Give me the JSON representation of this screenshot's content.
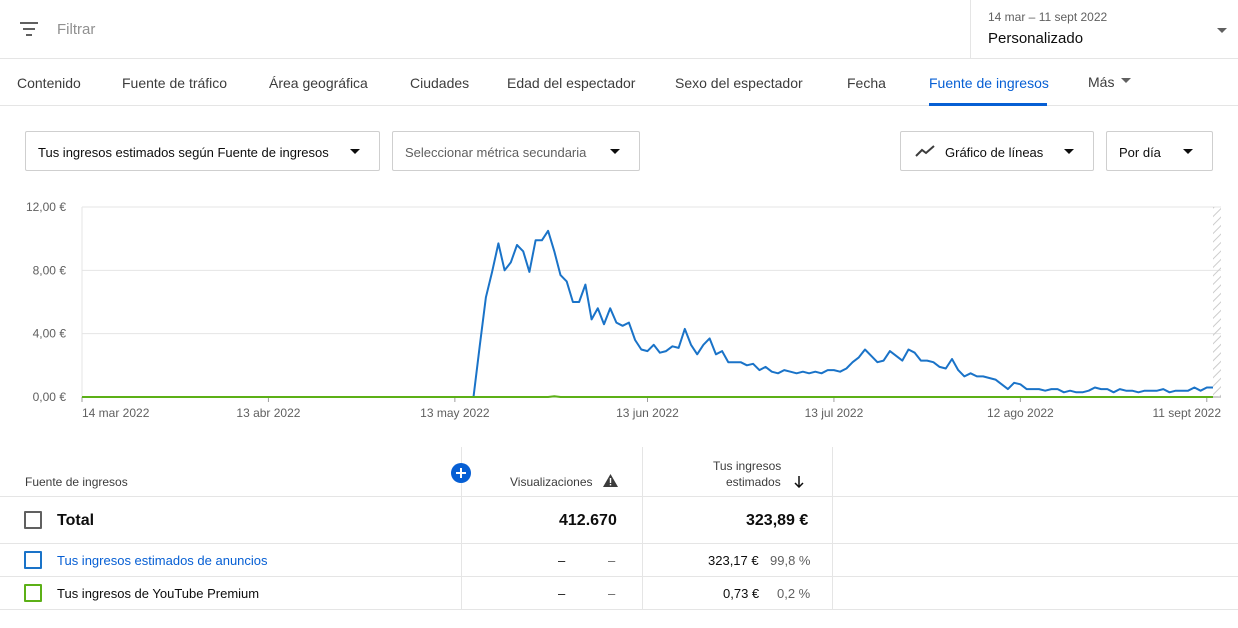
{
  "filter": {
    "placeholder": "Filtrar",
    "icon": "filter-icon"
  },
  "date_range": {
    "range": "14 mar – 11 sept 2022",
    "label": "Personalizado"
  },
  "tabs": [
    {
      "label": "Contenido"
    },
    {
      "label": "Fuente de tráfico"
    },
    {
      "label": "Área geográfica"
    },
    {
      "label": "Ciudades"
    },
    {
      "label": "Edad del espectador"
    },
    {
      "label": "Sexo del espectador"
    },
    {
      "label": "Fecha"
    },
    {
      "label": "Fuente de ingresos",
      "active": true
    },
    {
      "label": "Más"
    }
  ],
  "controls": {
    "primary_metric": "Tus ingresos estimados según Fuente de ingresos",
    "secondary_metric": "Seleccionar métrica secundaria",
    "chart_type": "Gráfico de líneas",
    "granularity": "Por día"
  },
  "colors": {
    "accent": "#065fd4",
    "ads_series": "#1a73c8",
    "premium_series": "#5cb017"
  },
  "chart_data": {
    "type": "line",
    "ylim": [
      0,
      12
    ],
    "yticks": [
      "12,00 €",
      "8,00 €",
      "4,00 €",
      "0,00 €"
    ],
    "ytick_values": [
      12,
      8,
      4,
      0
    ],
    "xticks": [
      "14 mar 2022",
      "13 abr 2022",
      "13 may 2022",
      "13 jun 2022",
      "13 jul 2022",
      "12 ago 2022",
      "11 sept 2022"
    ],
    "xtick_days": [
      0,
      30,
      60,
      91,
      121,
      151,
      181
    ],
    "series": [
      {
        "name": "Tus ingresos estimados de anuncios",
        "points": [
          [
            0,
            0
          ],
          [
            63,
            0
          ],
          [
            64,
            3.2
          ],
          [
            65,
            6.3
          ],
          [
            66,
            7.9
          ],
          [
            67,
            9.7
          ],
          [
            68,
            8.0
          ],
          [
            69,
            8.5
          ],
          [
            70,
            9.6
          ],
          [
            71,
            9.2
          ],
          [
            72,
            7.9
          ],
          [
            73,
            9.9
          ],
          [
            74,
            9.9
          ],
          [
            75,
            10.5
          ],
          [
            76,
            9.2
          ],
          [
            77,
            7.7
          ],
          [
            78,
            7.3
          ],
          [
            79,
            6.0
          ],
          [
            80,
            6.0
          ],
          [
            81,
            7.1
          ],
          [
            82,
            4.9
          ],
          [
            83,
            5.6
          ],
          [
            84,
            4.6
          ],
          [
            85,
            5.6
          ],
          [
            86,
            4.7
          ],
          [
            87,
            4.5
          ],
          [
            88,
            4.7
          ],
          [
            89,
            3.6
          ],
          [
            90,
            3.0
          ],
          [
            91,
            2.9
          ],
          [
            92,
            3.3
          ],
          [
            93,
            2.8
          ],
          [
            94,
            2.9
          ],
          [
            95,
            3.2
          ],
          [
            96,
            3.1
          ],
          [
            97,
            4.3
          ],
          [
            98,
            3.3
          ],
          [
            99,
            2.7
          ],
          [
            100,
            3.3
          ],
          [
            101,
            3.7
          ],
          [
            102,
            2.7
          ],
          [
            103,
            2.9
          ],
          [
            104,
            2.2
          ],
          [
            105,
            2.2
          ],
          [
            106,
            2.2
          ],
          [
            107,
            2.0
          ],
          [
            108,
            2.1
          ],
          [
            109,
            1.7
          ],
          [
            110,
            1.9
          ],
          [
            111,
            1.6
          ],
          [
            112,
            1.5
          ],
          [
            113,
            1.7
          ],
          [
            114,
            1.6
          ],
          [
            115,
            1.5
          ],
          [
            116,
            1.6
          ],
          [
            117,
            1.5
          ],
          [
            118,
            1.6
          ],
          [
            119,
            1.5
          ],
          [
            120,
            1.7
          ],
          [
            121,
            1.7
          ],
          [
            122,
            1.6
          ],
          [
            123,
            1.8
          ],
          [
            124,
            2.2
          ],
          [
            125,
            2.5
          ],
          [
            126,
            3.0
          ],
          [
            127,
            2.6
          ],
          [
            128,
            2.2
          ],
          [
            129,
            2.3
          ],
          [
            130,
            2.9
          ],
          [
            131,
            2.6
          ],
          [
            132,
            2.3
          ],
          [
            133,
            3.0
          ],
          [
            134,
            2.8
          ],
          [
            135,
            2.3
          ],
          [
            136,
            2.3
          ],
          [
            137,
            2.2
          ],
          [
            138,
            1.9
          ],
          [
            139,
            1.8
          ],
          [
            140,
            2.4
          ],
          [
            141,
            1.7
          ],
          [
            142,
            1.3
          ],
          [
            143,
            1.5
          ],
          [
            144,
            1.3
          ],
          [
            145,
            1.3
          ],
          [
            146,
            1.2
          ],
          [
            147,
            1.1
          ],
          [
            148,
            0.8
          ],
          [
            149,
            0.5
          ],
          [
            150,
            0.9
          ],
          [
            151,
            0.8
          ],
          [
            152,
            0.5
          ],
          [
            153,
            0.5
          ],
          [
            154,
            0.5
          ],
          [
            155,
            0.4
          ],
          [
            156,
            0.5
          ],
          [
            157,
            0.5
          ],
          [
            158,
            0.3
          ],
          [
            159,
            0.4
          ],
          [
            160,
            0.3
          ],
          [
            161,
            0.3
          ],
          [
            162,
            0.4
          ],
          [
            163,
            0.6
          ],
          [
            164,
            0.5
          ],
          [
            165,
            0.5
          ],
          [
            166,
            0.3
          ],
          [
            167,
            0.5
          ],
          [
            168,
            0.4
          ],
          [
            169,
            0.4
          ],
          [
            170,
            0.3
          ],
          [
            171,
            0.4
          ],
          [
            172,
            0.4
          ],
          [
            173,
            0.4
          ],
          [
            174,
            0.5
          ],
          [
            175,
            0.3
          ],
          [
            176,
            0.4
          ],
          [
            177,
            0.4
          ],
          [
            178,
            0.4
          ],
          [
            179,
            0.6
          ],
          [
            180,
            0.4
          ],
          [
            181,
            0.6
          ],
          [
            182,
            0.6
          ]
        ]
      },
      {
        "name": "Tus ingresos de YouTube Premium",
        "points": [
          [
            0,
            0
          ],
          [
            75,
            0
          ],
          [
            76,
            0.05
          ],
          [
            77,
            0
          ],
          [
            182,
            0
          ]
        ]
      }
    ],
    "grid": true,
    "partial_period": "last day hatched"
  },
  "table": {
    "headers": {
      "source": "Fuente de ingresos",
      "views": "Visualizaciones",
      "revenue_line1": "Tus ingresos",
      "revenue_line2": "estimados"
    },
    "total": {
      "label": "Total",
      "views": "412.670",
      "revenue": "323,89 €"
    },
    "rows": [
      {
        "label": "Tus ingresos estimados de anuncios",
        "views": "–",
        "views_pct": "–",
        "revenue": "323,17 €",
        "revenue_pct": "99,8 %"
      },
      {
        "label": "Tus ingresos de YouTube Premium",
        "views": "–",
        "views_pct": "–",
        "revenue": "0,73 €",
        "revenue_pct": "0,2 %"
      }
    ]
  }
}
